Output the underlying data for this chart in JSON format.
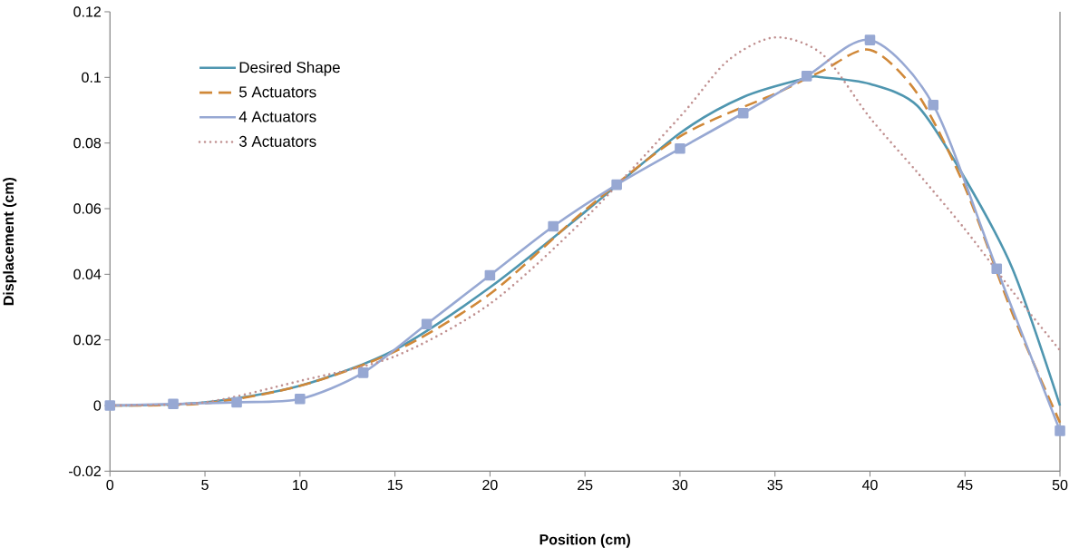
{
  "chart_data": {
    "type": "line",
    "xlabel": "Position (cm)",
    "ylabel": "Displacement (cm)",
    "xlim": [
      0,
      50
    ],
    "xticks": [
      0,
      5,
      10,
      15,
      20,
      25,
      30,
      35,
      40,
      45,
      50
    ],
    "ylim": [
      -0.02,
      0.12
    ],
    "yticks": [
      -0.02,
      0,
      0.02,
      0.04,
      0.06,
      0.08,
      0.1,
      0.12
    ],
    "grid": false,
    "legend": "top left",
    "series": [
      {
        "name": "Desired Shape",
        "color": "#4f96b0",
        "line_style": "solid",
        "marker": "none",
        "x": [
          0,
          5,
          10,
          15,
          20,
          25,
          30,
          33.33,
          36.67,
          37.5,
          40,
          42.5,
          45,
          47.5,
          50
        ],
        "values": [
          0,
          0.001,
          0.006,
          0.017,
          0.036,
          0.059,
          0.083,
          0.094,
          0.0998,
          0.1,
          0.098,
          0.0913,
          0.0692,
          0.0417,
          0
        ]
      },
      {
        "name": "5 Actuators",
        "color": "#d08838",
        "line_style": "dashed",
        "marker": "none",
        "x": [
          0,
          5,
          10,
          15,
          20,
          25,
          30,
          35,
          37.5,
          40,
          42.5,
          45,
          47.5,
          50
        ],
        "values": [
          0,
          0.0007,
          0.006,
          0.0165,
          0.034,
          0.0595,
          0.082,
          0.095,
          0.102,
          0.1084,
          0.095,
          0.0665,
          0.028,
          -0.0052
        ]
      },
      {
        "name": "4 Actuators",
        "color": "#97a8d3",
        "line_style": "solid",
        "marker": "square",
        "x": [
          0,
          3.33,
          6.67,
          10,
          13.33,
          16.67,
          20,
          23.33,
          26.67,
          30,
          33.33,
          36.67,
          40,
          43.33,
          46.67,
          50
        ],
        "values": [
          0,
          0.0005,
          0.001,
          0.002,
          0.01,
          0.0248,
          0.0397,
          0.0546,
          0.0673,
          0.0783,
          0.0891,
          0.1004,
          0.1114,
          0.0916,
          0.0417,
          -0.0077
        ]
      },
      {
        "name": "3 Actuators",
        "color": "#c09090",
        "line_style": "dotted",
        "marker": "none",
        "x": [
          0,
          5,
          10,
          15,
          20,
          25,
          30,
          32.5,
          35,
          37.5,
          40,
          42.5,
          45,
          47.5,
          50
        ],
        "values": [
          0,
          0.001,
          0.0075,
          0.015,
          0.031,
          0.057,
          0.088,
          0.105,
          0.1122,
          0.107,
          0.0877,
          0.071,
          0.0537,
          0.0348,
          0.0168
        ]
      }
    ]
  }
}
